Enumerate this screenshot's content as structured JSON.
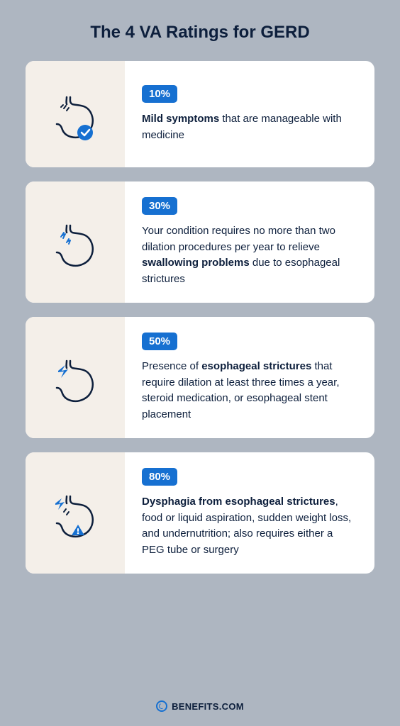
{
  "title": "The 4 VA Ratings for GERD",
  "background_color": "#aeb6c1",
  "card_background": "#ffffff",
  "card_icon_background": "#f4efe9",
  "accent_color": "#1670d1",
  "text_color": "#0d1f3c",
  "stomach_stroke": "#0d1f3c",
  "cards": [
    {
      "badge": "10%",
      "description_parts": [
        {
          "text": "Mild symptoms",
          "bold": true
        },
        {
          "text": " that are manageable with medicine",
          "bold": false
        }
      ],
      "icon_variant": "check"
    },
    {
      "badge": "30%",
      "description_parts": [
        {
          "text": "Your condition requires no more than two dilation procedures per year to relieve ",
          "bold": false
        },
        {
          "text": "swallowing problems",
          "bold": true
        },
        {
          "text": " due to esophageal strictures",
          "bold": false
        }
      ],
      "icon_variant": "mild-bolt"
    },
    {
      "badge": "50%",
      "description_parts": [
        {
          "text": "Presence of ",
          "bold": false
        },
        {
          "text": "esophageal strictures",
          "bold": true
        },
        {
          "text": " that require dilation at least three times a year, steroid medication, or esophageal stent placement",
          "bold": false
        }
      ],
      "icon_variant": "bolt"
    },
    {
      "badge": "80%",
      "description_parts": [
        {
          "text": "Dysphagia from esophageal strictures",
          "bold": true
        },
        {
          "text": ", food or liquid aspiration, sudden weight loss, and undernutrition; also requires either a PEG tube or surgery",
          "bold": false
        }
      ],
      "icon_variant": "alert"
    }
  ],
  "footer_label": "BENEFITS.COM"
}
